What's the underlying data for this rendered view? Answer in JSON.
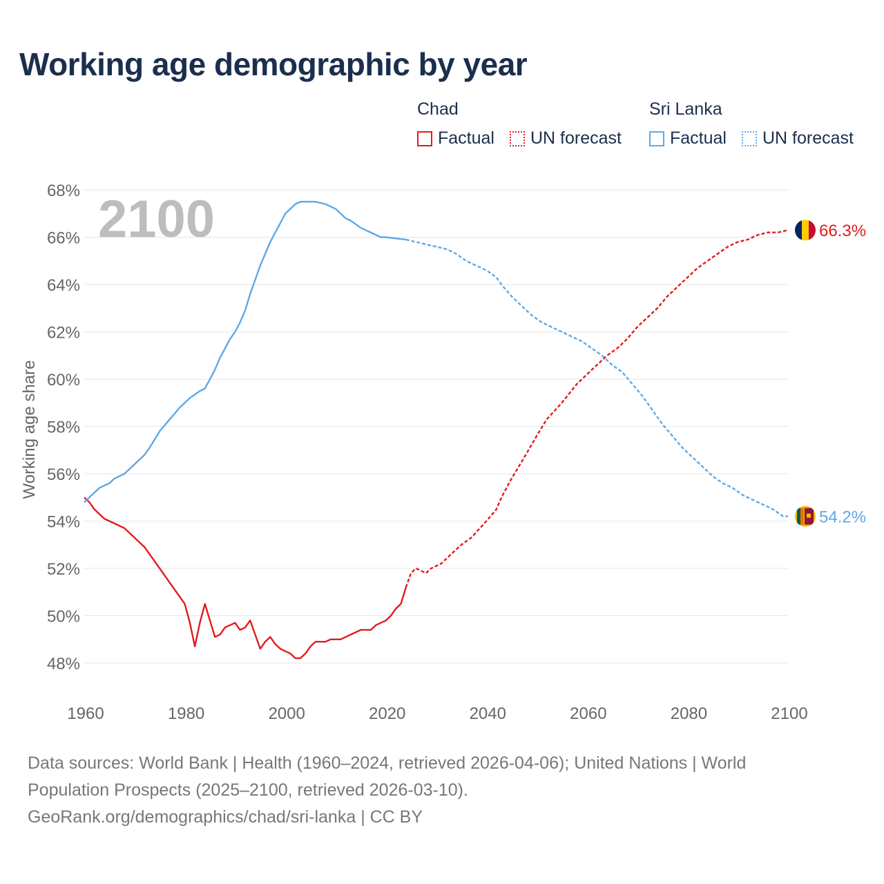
{
  "title": "Working age demographic by year",
  "legend": {
    "groups": [
      {
        "name": "Chad",
        "color": "#e31a1c",
        "factual_label": "Factual",
        "forecast_label": "UN forecast"
      },
      {
        "name": "Sri Lanka",
        "color": "#5fa8e6",
        "factual_label": "Factual",
        "forecast_label": "UN forecast"
      }
    ]
  },
  "footer": {
    "line1": "Data sources: World Bank | Health (1960–2024, retrieved 2026-04-06); United Nations | World",
    "line2": "Population Prospects (2025–2100, retrieved 2026-03-10).",
    "line3": "GeoRank.org/demographics/chad/sri-lanka | CC BY"
  },
  "chart_data": {
    "type": "line",
    "title": "Working age demographic by year",
    "year_overlay": "2100",
    "ylabel": "Working age share",
    "xlabel": "",
    "xlim": [
      1960,
      2100
    ],
    "ylim": [
      47.5,
      68
    ],
    "x_ticks": [
      1960,
      1980,
      2000,
      2020,
      2040,
      2060,
      2080,
      2100
    ],
    "y_ticks": [
      48,
      50,
      52,
      54,
      56,
      58,
      60,
      62,
      64,
      66,
      68
    ],
    "y_tick_labels": [
      "48%",
      "50%",
      "52%",
      "54%",
      "56%",
      "58%",
      "60%",
      "62%",
      "64%",
      "66%",
      "68%"
    ],
    "grid": true,
    "forecast_start": 2024,
    "series": [
      {
        "name": "Chad",
        "color": "#e31a1c",
        "end_label": "66.3%",
        "flag": "chad",
        "points": [
          [
            1960,
            55.0
          ],
          [
            1961,
            54.8
          ],
          [
            1962,
            54.5
          ],
          [
            1963,
            54.3
          ],
          [
            1964,
            54.1
          ],
          [
            1966,
            53.9
          ],
          [
            1968,
            53.7
          ],
          [
            1970,
            53.3
          ],
          [
            1972,
            52.9
          ],
          [
            1974,
            52.3
          ],
          [
            1975,
            52.0
          ],
          [
            1977,
            51.4
          ],
          [
            1979,
            50.8
          ],
          [
            1980,
            50.5
          ],
          [
            1981,
            49.7
          ],
          [
            1982,
            48.7
          ],
          [
            1983,
            49.7
          ],
          [
            1984,
            50.5
          ],
          [
            1985,
            49.8
          ],
          [
            1986,
            49.1
          ],
          [
            1987,
            49.2
          ],
          [
            1988,
            49.5
          ],
          [
            1989,
            49.6
          ],
          [
            1990,
            49.7
          ],
          [
            1991,
            49.4
          ],
          [
            1992,
            49.5
          ],
          [
            1993,
            49.8
          ],
          [
            1994,
            49.2
          ],
          [
            1995,
            48.6
          ],
          [
            1996,
            48.9
          ],
          [
            1997,
            49.1
          ],
          [
            1998,
            48.8
          ],
          [
            1999,
            48.6
          ],
          [
            2001,
            48.4
          ],
          [
            2002,
            48.2
          ],
          [
            2003,
            48.2
          ],
          [
            2004,
            48.4
          ],
          [
            2005,
            48.7
          ],
          [
            2006,
            48.9
          ],
          [
            2008,
            48.9
          ],
          [
            2009,
            49.0
          ],
          [
            2011,
            49.0
          ],
          [
            2012,
            49.1
          ],
          [
            2014,
            49.3
          ],
          [
            2015,
            49.4
          ],
          [
            2017,
            49.4
          ],
          [
            2018,
            49.6
          ],
          [
            2020,
            49.8
          ],
          [
            2021,
            50.0
          ],
          [
            2022,
            50.3
          ],
          [
            2023,
            50.5
          ],
          [
            2024,
            51.2
          ],
          [
            2025,
            51.8
          ],
          [
            2026,
            52.0
          ],
          [
            2027,
            51.9
          ],
          [
            2028,
            51.8
          ],
          [
            2029,
            52.0
          ],
          [
            2031,
            52.2
          ],
          [
            2033,
            52.6
          ],
          [
            2035,
            53.0
          ],
          [
            2037,
            53.3
          ],
          [
            2040,
            54.0
          ],
          [
            2042,
            54.5
          ],
          [
            2043,
            55.0
          ],
          [
            2045,
            55.8
          ],
          [
            2047,
            56.5
          ],
          [
            2050,
            57.6
          ],
          [
            2052,
            58.3
          ],
          [
            2055,
            59.0
          ],
          [
            2058,
            59.8
          ],
          [
            2061,
            60.4
          ],
          [
            2064,
            61.0
          ],
          [
            2066,
            61.3
          ],
          [
            2068,
            61.7
          ],
          [
            2070,
            62.2
          ],
          [
            2072,
            62.6
          ],
          [
            2074,
            63.0
          ],
          [
            2076,
            63.5
          ],
          [
            2078,
            63.9
          ],
          [
            2080,
            64.3
          ],
          [
            2082,
            64.7
          ],
          [
            2084,
            65.0
          ],
          [
            2086,
            65.3
          ],
          [
            2088,
            65.6
          ],
          [
            2090,
            65.8
          ],
          [
            2092,
            65.9
          ],
          [
            2094,
            66.1
          ],
          [
            2096,
            66.2
          ],
          [
            2098,
            66.2
          ],
          [
            2100,
            66.3
          ]
        ]
      },
      {
        "name": "Sri Lanka",
        "color": "#5fa8e6",
        "end_label": "54.2%",
        "flag": "sri-lanka",
        "points": [
          [
            1960,
            54.8
          ],
          [
            1961,
            55.0
          ],
          [
            1962,
            55.2
          ],
          [
            1963,
            55.4
          ],
          [
            1964,
            55.5
          ],
          [
            1965,
            55.6
          ],
          [
            1966,
            55.8
          ],
          [
            1968,
            56.0
          ],
          [
            1970,
            56.4
          ],
          [
            1972,
            56.8
          ],
          [
            1973,
            57.1
          ],
          [
            1975,
            57.8
          ],
          [
            1977,
            58.3
          ],
          [
            1979,
            58.8
          ],
          [
            1980,
            59.0
          ],
          [
            1981,
            59.2
          ],
          [
            1983,
            59.5
          ],
          [
            1984,
            59.6
          ],
          [
            1985,
            60.0
          ],
          [
            1986,
            60.4
          ],
          [
            1987,
            60.9
          ],
          [
            1988,
            61.3
          ],
          [
            1989,
            61.7
          ],
          [
            1990,
            62.0
          ],
          [
            1991,
            62.4
          ],
          [
            1992,
            62.9
          ],
          [
            1993,
            63.6
          ],
          [
            1994,
            64.2
          ],
          [
            1995,
            64.8
          ],
          [
            1996,
            65.3
          ],
          [
            1997,
            65.8
          ],
          [
            1998,
            66.2
          ],
          [
            1999,
            66.6
          ],
          [
            2000,
            67.0
          ],
          [
            2001,
            67.2
          ],
          [
            2002,
            67.4
          ],
          [
            2003,
            67.5
          ],
          [
            2004,
            67.5
          ],
          [
            2006,
            67.5
          ],
          [
            2008,
            67.4
          ],
          [
            2010,
            67.2
          ],
          [
            2012,
            66.8
          ],
          [
            2013,
            66.7
          ],
          [
            2015,
            66.4
          ],
          [
            2017,
            66.2
          ],
          [
            2019,
            66.0
          ],
          [
            2020,
            66.0
          ],
          [
            2024,
            65.9
          ],
          [
            2026,
            65.8
          ],
          [
            2028,
            65.7
          ],
          [
            2030,
            65.6
          ],
          [
            2032,
            65.5
          ],
          [
            2034,
            65.3
          ],
          [
            2036,
            65.0
          ],
          [
            2038,
            64.8
          ],
          [
            2040,
            64.6
          ],
          [
            2042,
            64.3
          ],
          [
            2043,
            64.0
          ],
          [
            2045,
            63.5
          ],
          [
            2047,
            63.1
          ],
          [
            2049,
            62.7
          ],
          [
            2051,
            62.4
          ],
          [
            2053,
            62.2
          ],
          [
            2055,
            62.0
          ],
          [
            2057,
            61.8
          ],
          [
            2059,
            61.6
          ],
          [
            2061,
            61.3
          ],
          [
            2063,
            61.0
          ],
          [
            2065,
            60.6
          ],
          [
            2067,
            60.3
          ],
          [
            2069,
            59.8
          ],
          [
            2071,
            59.3
          ],
          [
            2073,
            58.7
          ],
          [
            2075,
            58.1
          ],
          [
            2077,
            57.6
          ],
          [
            2079,
            57.1
          ],
          [
            2081,
            56.7
          ],
          [
            2083,
            56.3
          ],
          [
            2085,
            55.9
          ],
          [
            2087,
            55.6
          ],
          [
            2089,
            55.4
          ],
          [
            2091,
            55.1
          ],
          [
            2093,
            54.9
          ],
          [
            2095,
            54.7
          ],
          [
            2097,
            54.5
          ],
          [
            2099,
            54.2
          ],
          [
            2100,
            54.2
          ]
        ]
      }
    ]
  }
}
